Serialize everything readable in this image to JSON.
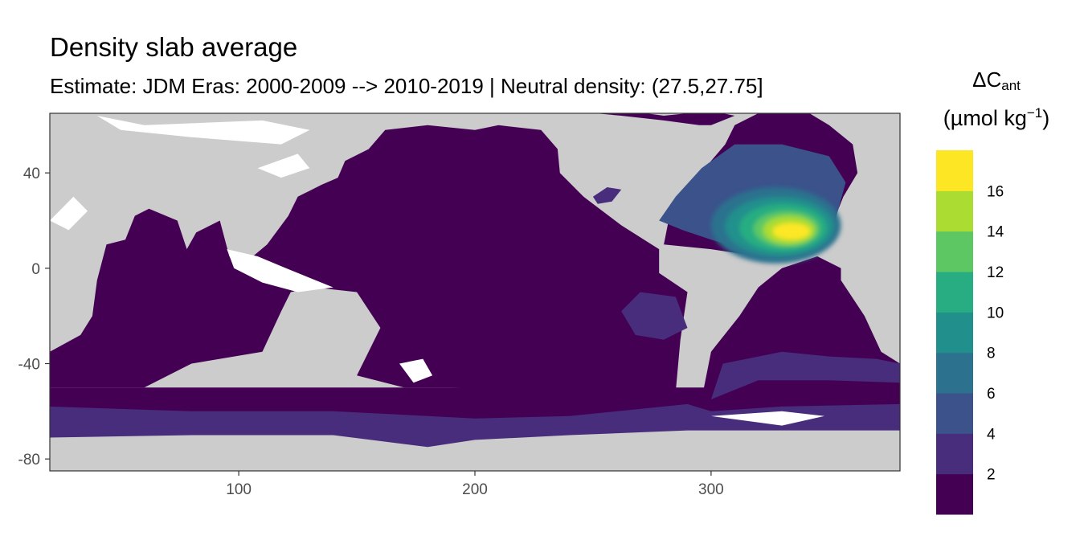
{
  "title": "Density slab average",
  "subtitle": "Estimate: JDM Eras: 2000-2009 --> 2010-2019 | Neutral density: (27.5,27.75]",
  "chart_data": {
    "type": "heatmap",
    "title": "Density slab average",
    "subtitle": "Estimate: JDM Eras: 2000-2009 --> 2010-2019 | Neutral density: (27.5,27.75]",
    "xlabel": "",
    "ylabel": "",
    "xlim": [
      20,
      380
    ],
    "ylim": [
      -85,
      65
    ],
    "x_ticks": [
      100,
      200,
      300
    ],
    "y_ticks": [
      40,
      0,
      -40,
      -80
    ],
    "x_tick_labels": [
      "100",
      "200",
      "300"
    ],
    "y_tick_labels": [
      "40",
      "0",
      "-40",
      "-80"
    ],
    "legend": {
      "title_main": "ΔC",
      "title_sub": "ant",
      "units_prefix": "(µmol kg",
      "units_sup": "−1",
      "units_suffix": ")",
      "bins": [
        {
          "from": 0,
          "to": 2,
          "color": "#440154"
        },
        {
          "from": 2,
          "to": 4,
          "color": "#472D7B"
        },
        {
          "from": 4,
          "to": 6,
          "color": "#3B528B"
        },
        {
          "from": 6,
          "to": 8,
          "color": "#2C728E"
        },
        {
          "from": 8,
          "to": 10,
          "color": "#21908C"
        },
        {
          "from": 10,
          "to": 12,
          "color": "#27AD81"
        },
        {
          "from": 12,
          "to": 14,
          "color": "#5DC863"
        },
        {
          "from": 14,
          "to": 16,
          "color": "#AADC32"
        },
        {
          "from": 16,
          "to": 18,
          "color": "#FDE725"
        }
      ],
      "break_labels": [
        "2",
        "4",
        "6",
        "8",
        "10",
        "12",
        "14",
        "16"
      ],
      "position": "right"
    },
    "land_color": "#CCCCCC",
    "no_data_color": "#FFFFFF",
    "regions": [
      {
        "name": "Global ocean background",
        "value": 1
      },
      {
        "name": "Southern Ocean band",
        "value": 3
      },
      {
        "name": "North Pacific patch",
        "value": 3
      },
      {
        "name": "South Atlantic band",
        "value": 3
      },
      {
        "name": "North Atlantic subtropical gyre",
        "value": 5
      },
      {
        "name": "Subtropical Atlantic core",
        "value": 17
      }
    ]
  }
}
